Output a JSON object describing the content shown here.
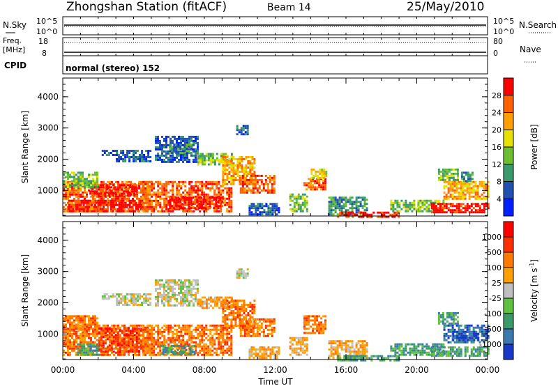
{
  "header": {
    "station": "Zhongshan Station (fitACF)",
    "beam": "Beam 14",
    "date": "25/May/2010"
  },
  "top_panels": {
    "nsky_label": "N.Sky",
    "nsearch_label": "N.Search",
    "freq_label": "Freq.",
    "freq_unit": "[MHz]",
    "nave_label": "Nave",
    "cpid_label": "CPID",
    "cpid_value": "normal (stereo) 152",
    "nsky_ticks": [
      "10^5",
      "10^0"
    ],
    "nsearch_ticks": [
      "10^5",
      "10^0"
    ],
    "freq_ticks": [
      "18",
      "8"
    ],
    "nave_ticks": [
      "80",
      "0"
    ]
  },
  "chart_data": [
    {
      "type": "heatmap",
      "panel": "power",
      "ylabel": "Slant Range [km]",
      "xlabel": "",
      "ylim": [
        180,
        4600
      ],
      "yticks": [
        1000,
        2000,
        3000,
        4000
      ],
      "colorbar_label": "Power [dB]",
      "colorbar_ticks": [
        "4",
        "8",
        "12",
        "16",
        "20",
        "24",
        "28"
      ],
      "colorbar_colors": [
        "#0020ff",
        "#2050b0",
        "#3c9a6a",
        "#6cc030",
        "#e8e000",
        "#ffa000",
        "#ff6000",
        "#ff0000"
      ],
      "patches": [
        {
          "t": [
            0.0,
            5.0
          ],
          "r": [
            300,
            1300
          ],
          "c": 6
        },
        {
          "t": [
            0.3,
            4.5
          ],
          "r": [
            350,
            700
          ],
          "c": 7
        },
        {
          "t": [
            1.5,
            4.2
          ],
          "r": [
            800,
            1200
          ],
          "c": 7
        },
        {
          "t": [
            4.5,
            9.5
          ],
          "r": [
            300,
            1300
          ],
          "c": 6
        },
        {
          "t": [
            6.0,
            9.0
          ],
          "r": [
            400,
            800
          ],
          "c": 7
        },
        {
          "t": [
            0.0,
            2.0
          ],
          "r": [
            1100,
            1600
          ],
          "c": 3
        },
        {
          "t": [
            2.2,
            3.0
          ],
          "r": [
            2100,
            2300
          ],
          "c": 1
        },
        {
          "t": [
            3.0,
            5.0
          ],
          "r": [
            1950,
            2300
          ],
          "c": 1
        },
        {
          "t": [
            5.2,
            7.6
          ],
          "r": [
            1900,
            2750
          ],
          "c": 1
        },
        {
          "t": [
            6.0,
            7.2
          ],
          "r": [
            2200,
            2500
          ],
          "c": 2
        },
        {
          "t": [
            7.6,
            9.5
          ],
          "r": [
            1800,
            2200
          ],
          "c": 3
        },
        {
          "t": [
            9.0,
            10.8
          ],
          "r": [
            1200,
            2100
          ],
          "c": 5
        },
        {
          "t": [
            9.8,
            10.5
          ],
          "r": [
            2800,
            3100
          ],
          "c": 1
        },
        {
          "t": [
            10.0,
            12.0
          ],
          "r": [
            900,
            1500
          ],
          "c": 6
        },
        {
          "t": [
            10.5,
            12.2
          ],
          "r": [
            200,
            600
          ],
          "c": 1
        },
        {
          "t": [
            12.8,
            13.8
          ],
          "r": [
            300,
            900
          ],
          "c": 3
        },
        {
          "t": [
            13.6,
            14.8
          ],
          "r": [
            1000,
            1400
          ],
          "c": 6
        },
        {
          "t": [
            14.0,
            14.9
          ],
          "r": [
            1400,
            1700
          ],
          "c": 4
        },
        {
          "t": [
            15.0,
            17.2
          ],
          "r": [
            200,
            800
          ],
          "c": 2
        },
        {
          "t": [
            15.5,
            19.0
          ],
          "r": [
            180,
            320
          ],
          "c": 7
        },
        {
          "t": [
            18.5,
            21.5
          ],
          "r": [
            300,
            700
          ],
          "c": 3
        },
        {
          "t": [
            20.8,
            24.0
          ],
          "r": [
            300,
            600
          ],
          "c": 7
        },
        {
          "t": [
            21.5,
            24.0
          ],
          "r": [
            700,
            1300
          ],
          "c": 5
        },
        {
          "t": [
            21.2,
            22.3
          ],
          "r": [
            1300,
            1700
          ],
          "c": 3
        },
        {
          "t": [
            22.5,
            23.2
          ],
          "r": [
            1300,
            1600
          ],
          "c": 2
        }
      ]
    },
    {
      "type": "heatmap",
      "panel": "velocity",
      "ylabel": "Slant Range [km]",
      "xlabel": "Time UT",
      "ylim": [
        180,
        4600
      ],
      "yticks": [
        1000,
        2000,
        3000,
        4000
      ],
      "xticks": [
        "00:00",
        "04:00",
        "08:00",
        "12:00",
        "16:00",
        "20:00",
        "00:00"
      ],
      "colorbar_label": "Velocity [m s^-1]",
      "colorbar_ticks": [
        "1000",
        "500",
        "100",
        "25",
        "-25",
        "-100",
        "-500",
        "-1000"
      ],
      "colorbar_colors": [
        "#1838c8",
        "#3a7ab0",
        "#3c9a6a",
        "#60c040",
        "#c0c0c0",
        "#ffa000",
        "#ff7a00",
        "#ff3000",
        "#ff0000"
      ],
      "patches": [
        {
          "t": [
            0.0,
            5.0
          ],
          "r": [
            300,
            1300
          ],
          "c": 6
        },
        {
          "t": [
            0.8,
            2.0
          ],
          "r": [
            350,
            700
          ],
          "c": 2
        },
        {
          "t": [
            2.0,
            4.5
          ],
          "r": [
            400,
            1200
          ],
          "c": 7
        },
        {
          "t": [
            4.5,
            9.5
          ],
          "r": [
            300,
            1300
          ],
          "c": 6
        },
        {
          "t": [
            5.5,
            7.5
          ],
          "r": [
            350,
            650
          ],
          "c": 2
        },
        {
          "t": [
            0.0,
            2.0
          ],
          "r": [
            1100,
            1600
          ],
          "c": 6
        },
        {
          "t": [
            2.2,
            3.0
          ],
          "r": [
            2100,
            2300
          ],
          "c": 4
        },
        {
          "t": [
            3.0,
            5.0
          ],
          "r": [
            1950,
            2300
          ],
          "c": 4
        },
        {
          "t": [
            5.2,
            7.6
          ],
          "r": [
            1900,
            2750
          ],
          "c": 4
        },
        {
          "t": [
            7.6,
            9.5
          ],
          "r": [
            1800,
            2200
          ],
          "c": 5
        },
        {
          "t": [
            9.0,
            10.8
          ],
          "r": [
            1200,
            2100
          ],
          "c": 6
        },
        {
          "t": [
            9.8,
            10.5
          ],
          "r": [
            2800,
            3100
          ],
          "c": 4
        },
        {
          "t": [
            10.0,
            12.0
          ],
          "r": [
            900,
            1500
          ],
          "c": 6
        },
        {
          "t": [
            10.5,
            12.2
          ],
          "r": [
            200,
            600
          ],
          "c": 5
        },
        {
          "t": [
            12.8,
            13.8
          ],
          "r": [
            300,
            900
          ],
          "c": 5
        },
        {
          "t": [
            13.6,
            14.8
          ],
          "r": [
            1000,
            1600
          ],
          "c": 6
        },
        {
          "t": [
            15.0,
            17.2
          ],
          "r": [
            200,
            800
          ],
          "c": 5
        },
        {
          "t": [
            15.5,
            19.0
          ],
          "r": [
            180,
            320
          ],
          "c": 2
        },
        {
          "t": [
            18.5,
            21.5
          ],
          "r": [
            300,
            700
          ],
          "c": 2
        },
        {
          "t": [
            20.8,
            24.0
          ],
          "r": [
            300,
            600
          ],
          "c": 2
        },
        {
          "t": [
            21.5,
            24.0
          ],
          "r": [
            700,
            1300
          ],
          "c": 1
        },
        {
          "t": [
            22.0,
            23.5
          ],
          "r": [
            800,
            1100
          ],
          "c": 0
        },
        {
          "t": [
            21.2,
            22.3
          ],
          "r": [
            1300,
            1700
          ],
          "c": 2
        }
      ]
    }
  ]
}
